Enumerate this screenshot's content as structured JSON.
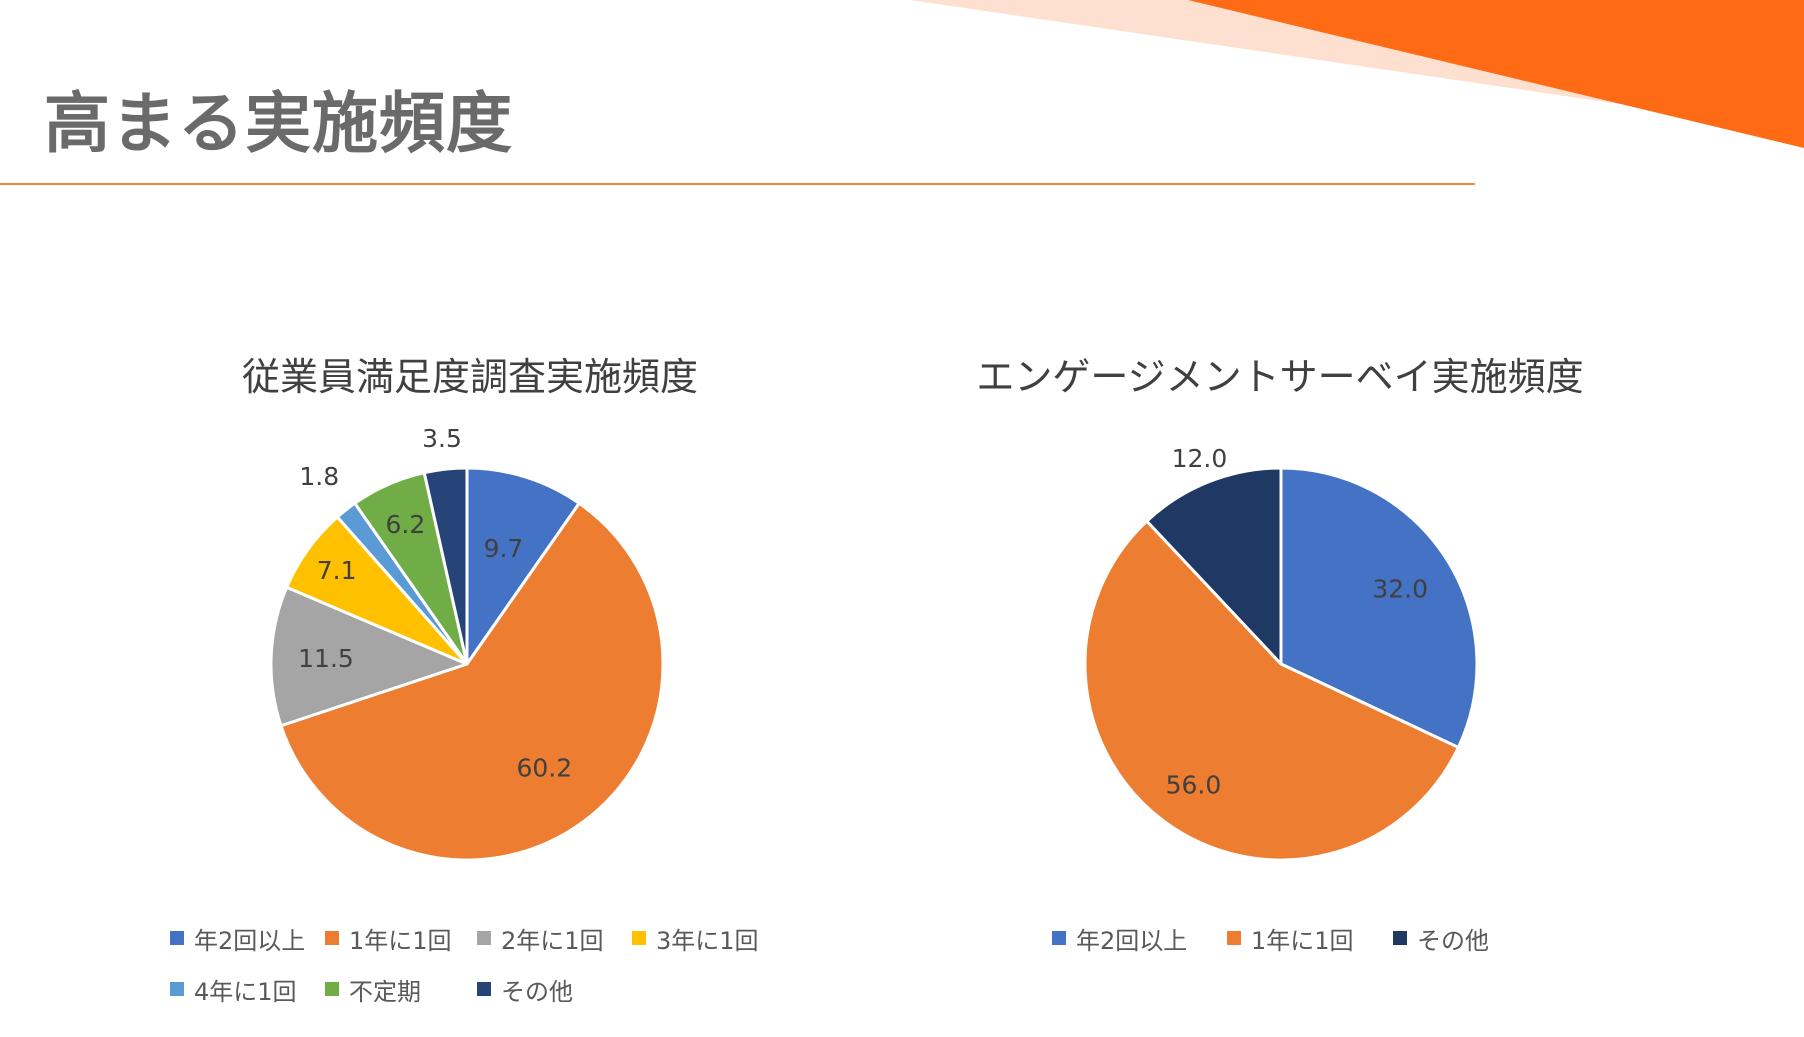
{
  "slide": {
    "title": "高まる実施頻度"
  },
  "colors": {
    "accent": "#ff6b14",
    "accent_light": "#fde0cf",
    "rule": "#ee8a3a"
  },
  "chart_data": [
    {
      "type": "pie",
      "title": "従業員満足度調査実施頻度",
      "categories": [
        "年2回以上",
        "1年に1回",
        "2年に1回",
        "3年に1回",
        "4年に1回",
        "不定期",
        "その他"
      ],
      "values": [
        9.7,
        60.2,
        11.5,
        7.1,
        1.8,
        6.2,
        3.5
      ],
      "value_labels": [
        "9.7",
        "60.2",
        "11.5",
        "7.1",
        "1.8",
        "6.2",
        "3.5"
      ],
      "colors": [
        "#4472c4",
        "#ed7d31",
        "#a5a5a5",
        "#ffc000",
        "#5b9bd5",
        "#70ad47",
        "#264478"
      ],
      "legend": "bottom"
    },
    {
      "type": "pie",
      "title": "エンゲージメントサーベイ実施頻度",
      "categories": [
        "年2回以上",
        "1年に1回",
        "その他"
      ],
      "values": [
        32.0,
        56.0,
        12.0
      ],
      "value_labels": [
        "32.0",
        "56.0",
        "12.0"
      ],
      "colors": [
        "#4472c4",
        "#ed7d31",
        "#203864"
      ],
      "legend": "bottom"
    }
  ]
}
